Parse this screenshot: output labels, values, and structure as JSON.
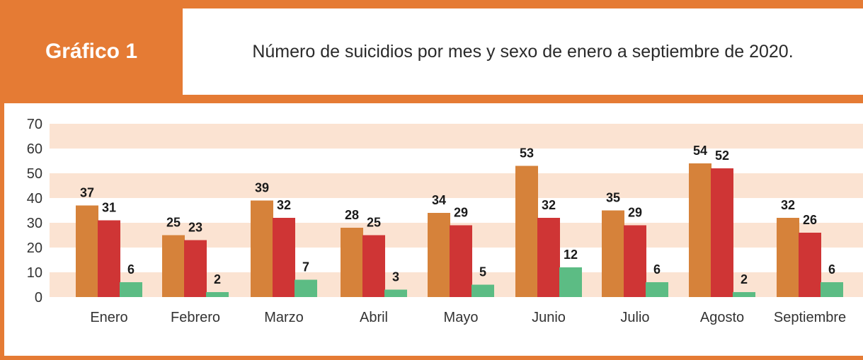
{
  "header": {
    "tag": "Gráfico 1",
    "title": "Número de suicidios por mes y sexo de enero a septiembre de 2020."
  },
  "colors": {
    "accent": "#e57b34",
    "band": "#fbe3d2",
    "series": [
      "#d6823a",
      "#cf3535",
      "#5cbc84"
    ]
  },
  "chart_data": {
    "type": "bar",
    "title": "Número de suicidios por mes y sexo de enero a septiembre de 2020.",
    "xlabel": "",
    "ylabel": "",
    "categories": [
      "Enero",
      "Febrero",
      "Marzo",
      "Abril",
      "Mayo",
      "Junio",
      "Julio",
      "Agosto",
      "Septiembre"
    ],
    "series": [
      {
        "values": [
          37,
          25,
          39,
          28,
          34,
          53,
          35,
          54,
          32
        ]
      },
      {
        "values": [
          31,
          23,
          32,
          25,
          29,
          32,
          29,
          52,
          26
        ]
      },
      {
        "values": [
          6,
          2,
          7,
          3,
          5,
          12,
          6,
          2,
          6
        ]
      }
    ],
    "ylim": [
      0,
      70
    ],
    "yticks": [
      0,
      10,
      20,
      30,
      40,
      50,
      60,
      70
    ],
    "grid": "alternating horizontal bands",
    "legend": "none"
  }
}
